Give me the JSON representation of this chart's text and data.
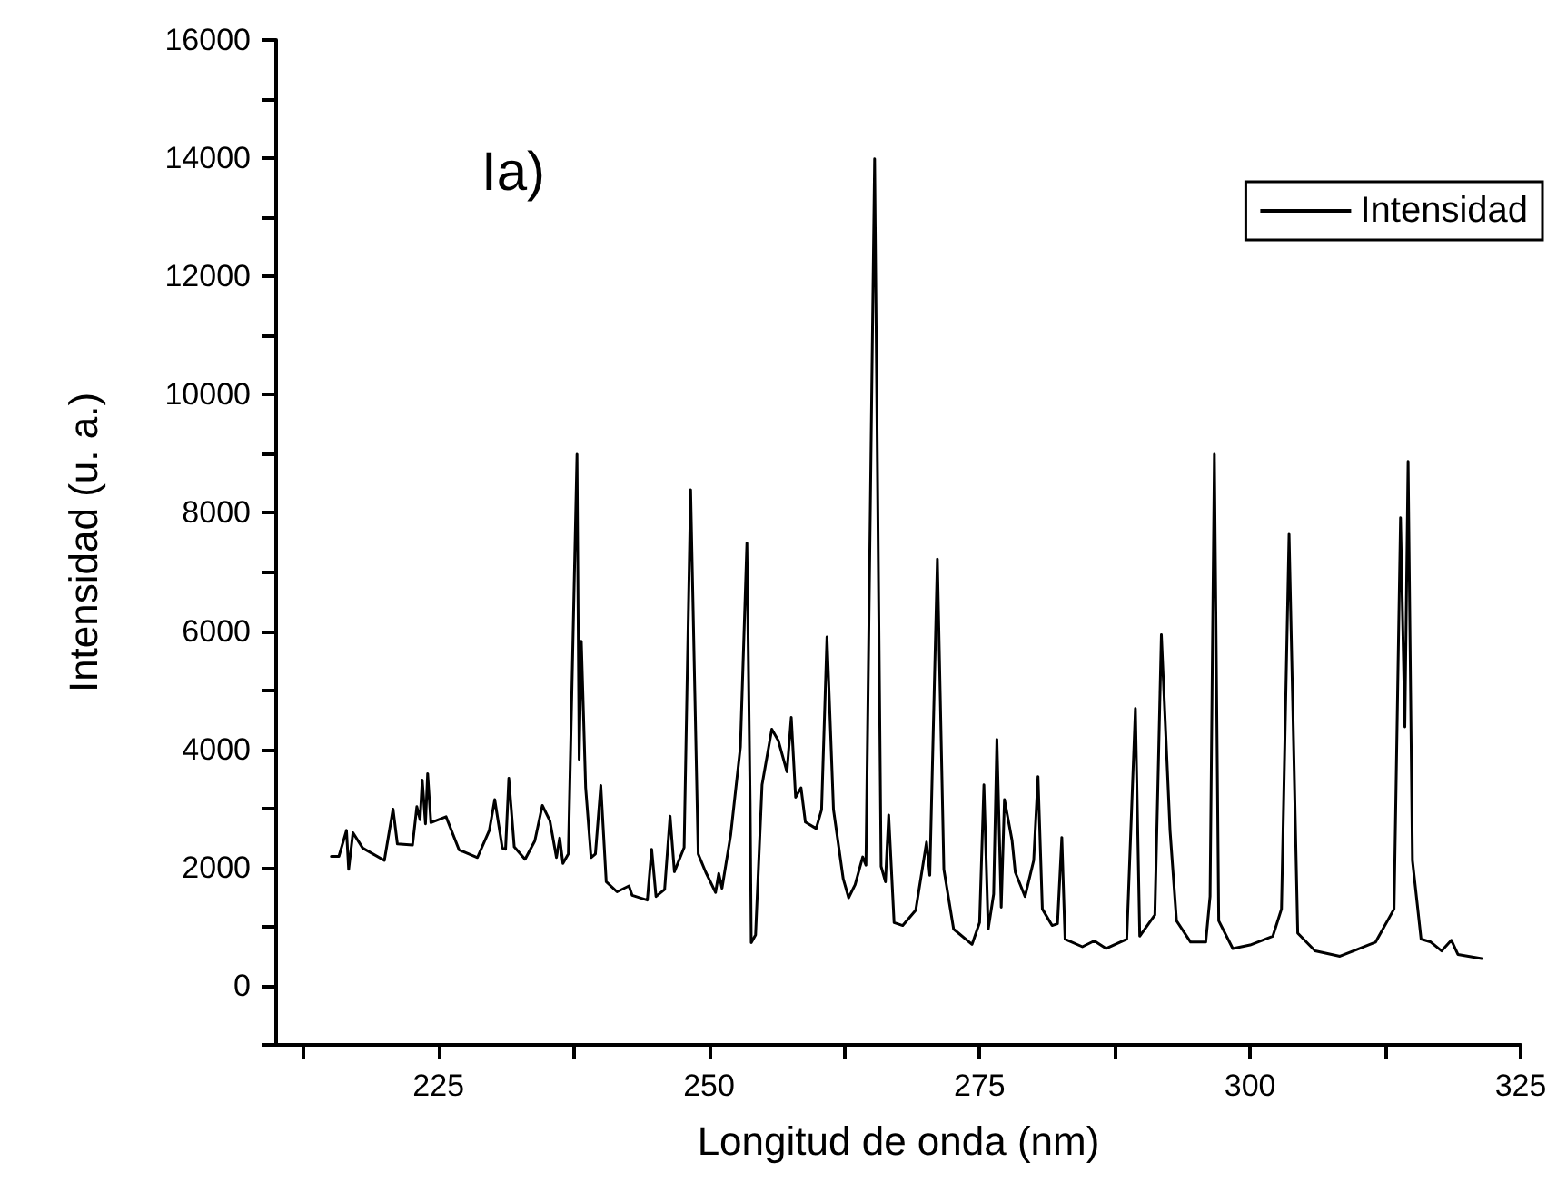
{
  "chart_data": {
    "type": "line",
    "xlabel": "Longitud de onda (nm)",
    "ylabel": "Intensidad (u. a.)",
    "annotations": [
      "Ia)"
    ],
    "xlim": [
      210,
      325
    ],
    "xticks": [
      {
        "value": 212.5,
        "label": null
      },
      225,
      {
        "value": 237.5,
        "label": null
      },
      250,
      {
        "value": 262.5,
        "label": null
      },
      275,
      {
        "value": 287.5,
        "label": null
      },
      300,
      {
        "value": 312.5,
        "label": null
      },
      325
    ],
    "ylim": [
      -1000,
      16000
    ],
    "yticks": [
      {
        "value": -1000,
        "label": null
      },
      0,
      {
        "value": 1000,
        "label": null
      },
      2000,
      {
        "value": 3000,
        "label": null
      },
      4000,
      {
        "value": 5000,
        "label": null
      },
      6000,
      {
        "value": 7000,
        "label": null
      },
      8000,
      {
        "value": 9000,
        "label": null
      },
      10000,
      {
        "value": 11000,
        "label": null
      },
      12000,
      {
        "value": 13000,
        "label": null
      },
      14000,
      {
        "value": 15000,
        "label": null
      },
      16000
    ],
    "grid": false,
    "legend": "top right",
    "marker": "none",
    "line_style": "solid",
    "series": [
      {
        "name": "Intensidad",
        "color": "#000000",
        "x": [
          215.1,
          215.8,
          216.5,
          216.7,
          217.1,
          218.0,
          220.0,
          220.8,
          221.2,
          222.6,
          223.0,
          223.3,
          223.5,
          223.8,
          224.0,
          224.3,
          225.7,
          226.9,
          228.6,
          229.7,
          230.2,
          230.9,
          231.2,
          231.5,
          232.0,
          233.0,
          233.9,
          234.6,
          235.3,
          235.9,
          236.2,
          236.5,
          237.0,
          237.8,
          238.0,
          238.2,
          238.6,
          239.1,
          239.5,
          240.0,
          240.5,
          241.5,
          242.6,
          242.9,
          244.3,
          244.7,
          245.1,
          245.9,
          246.4,
          246.8,
          247.7,
          248.3,
          249.0,
          249.7,
          250.6,
          250.9,
          251.2,
          252.0,
          252.9,
          253.5,
          253.8,
          253.9,
          254.3,
          254.9,
          255.8,
          256.4,
          257.2,
          257.6,
          258.0,
          258.5,
          258.9,
          259.9,
          260.4,
          260.9,
          261.5,
          262.4,
          262.9,
          263.5,
          264.2,
          264.5,
          265.3,
          265.9,
          266.3,
          266.6,
          267.1,
          267.9,
          269.1,
          270.1,
          270.4,
          271.1,
          271.7,
          272.6,
          274.3,
          275.0,
          275.4,
          275.8,
          276.3,
          276.6,
          277.0,
          277.3,
          278.0,
          278.3,
          279.2,
          280.0,
          280.4,
          280.8,
          281.7,
          282.2,
          282.6,
          282.9,
          284.5,
          285.6,
          286.7,
          288.6,
          289.4,
          289.8,
          291.2,
          291.8,
          292.6,
          293.2,
          294.5,
          295.9,
          296.3,
          296.7,
          297.1,
          298.4,
          300.0,
          302.1,
          302.9,
          303.6,
          304.4,
          306.0,
          308.3,
          309.7,
          311.6,
          313.3,
          313.9,
          314.3,
          314.6,
          315.0,
          315.8,
          316.7,
          317.7,
          318.6,
          319.2,
          321.4
        ],
        "values": [
          2190,
          2190,
          2630,
          1970,
          2590,
          2330,
          2120,
          2990,
          2400,
          2380,
          3030,
          2810,
          3480,
          2740,
          3590,
          2760,
          2860,
          2300,
          2170,
          2630,
          3150,
          2330,
          2310,
          3510,
          2350,
          2140,
          2450,
          3050,
          2790,
          2170,
          2500,
          2070,
          2230,
          8990,
          3830,
          5830,
          3350,
          2170,
          2230,
          3390,
          1760,
          1590,
          1690,
          1530,
          1450,
          2310,
          1510,
          1630,
          2870,
          1930,
          2340,
          8390,
          2230,
          1920,
          1580,
          1900,
          1650,
          2550,
          4040,
          7490,
          3090,
          730,
          860,
          3400,
          4340,
          4150,
          3620,
          4540,
          3190,
          3350,
          2770,
          2660,
          2980,
          5900,
          2980,
          1810,
          1490,
          1710,
          2180,
          2040,
          13990,
          2020,
          1760,
          2890,
          1070,
          1020,
          1280,
          2430,
          1870,
          7220,
          1970,
          960,
          700,
          1070,
          3400,
          960,
          1550,
          4170,
          1330,
          3150,
          2460,
          1920,
          1510,
          2120,
          3540,
          1300,
          1020,
          1050,
          2510,
          790,
          660,
          760,
          630,
          790,
          4690,
          840,
          1200,
          5940,
          2630,
          1100,
          740,
          740,
          1510,
          8990,
          1100,
          630,
          690,
          840,
          1300,
          7640,
          890,
          590,
          500,
          600,
          740,
          1300,
          7920,
          4380,
          8870,
          2120,
          790,
          740,
          590,
          770,
          530,
          460
        ]
      }
    ]
  }
}
